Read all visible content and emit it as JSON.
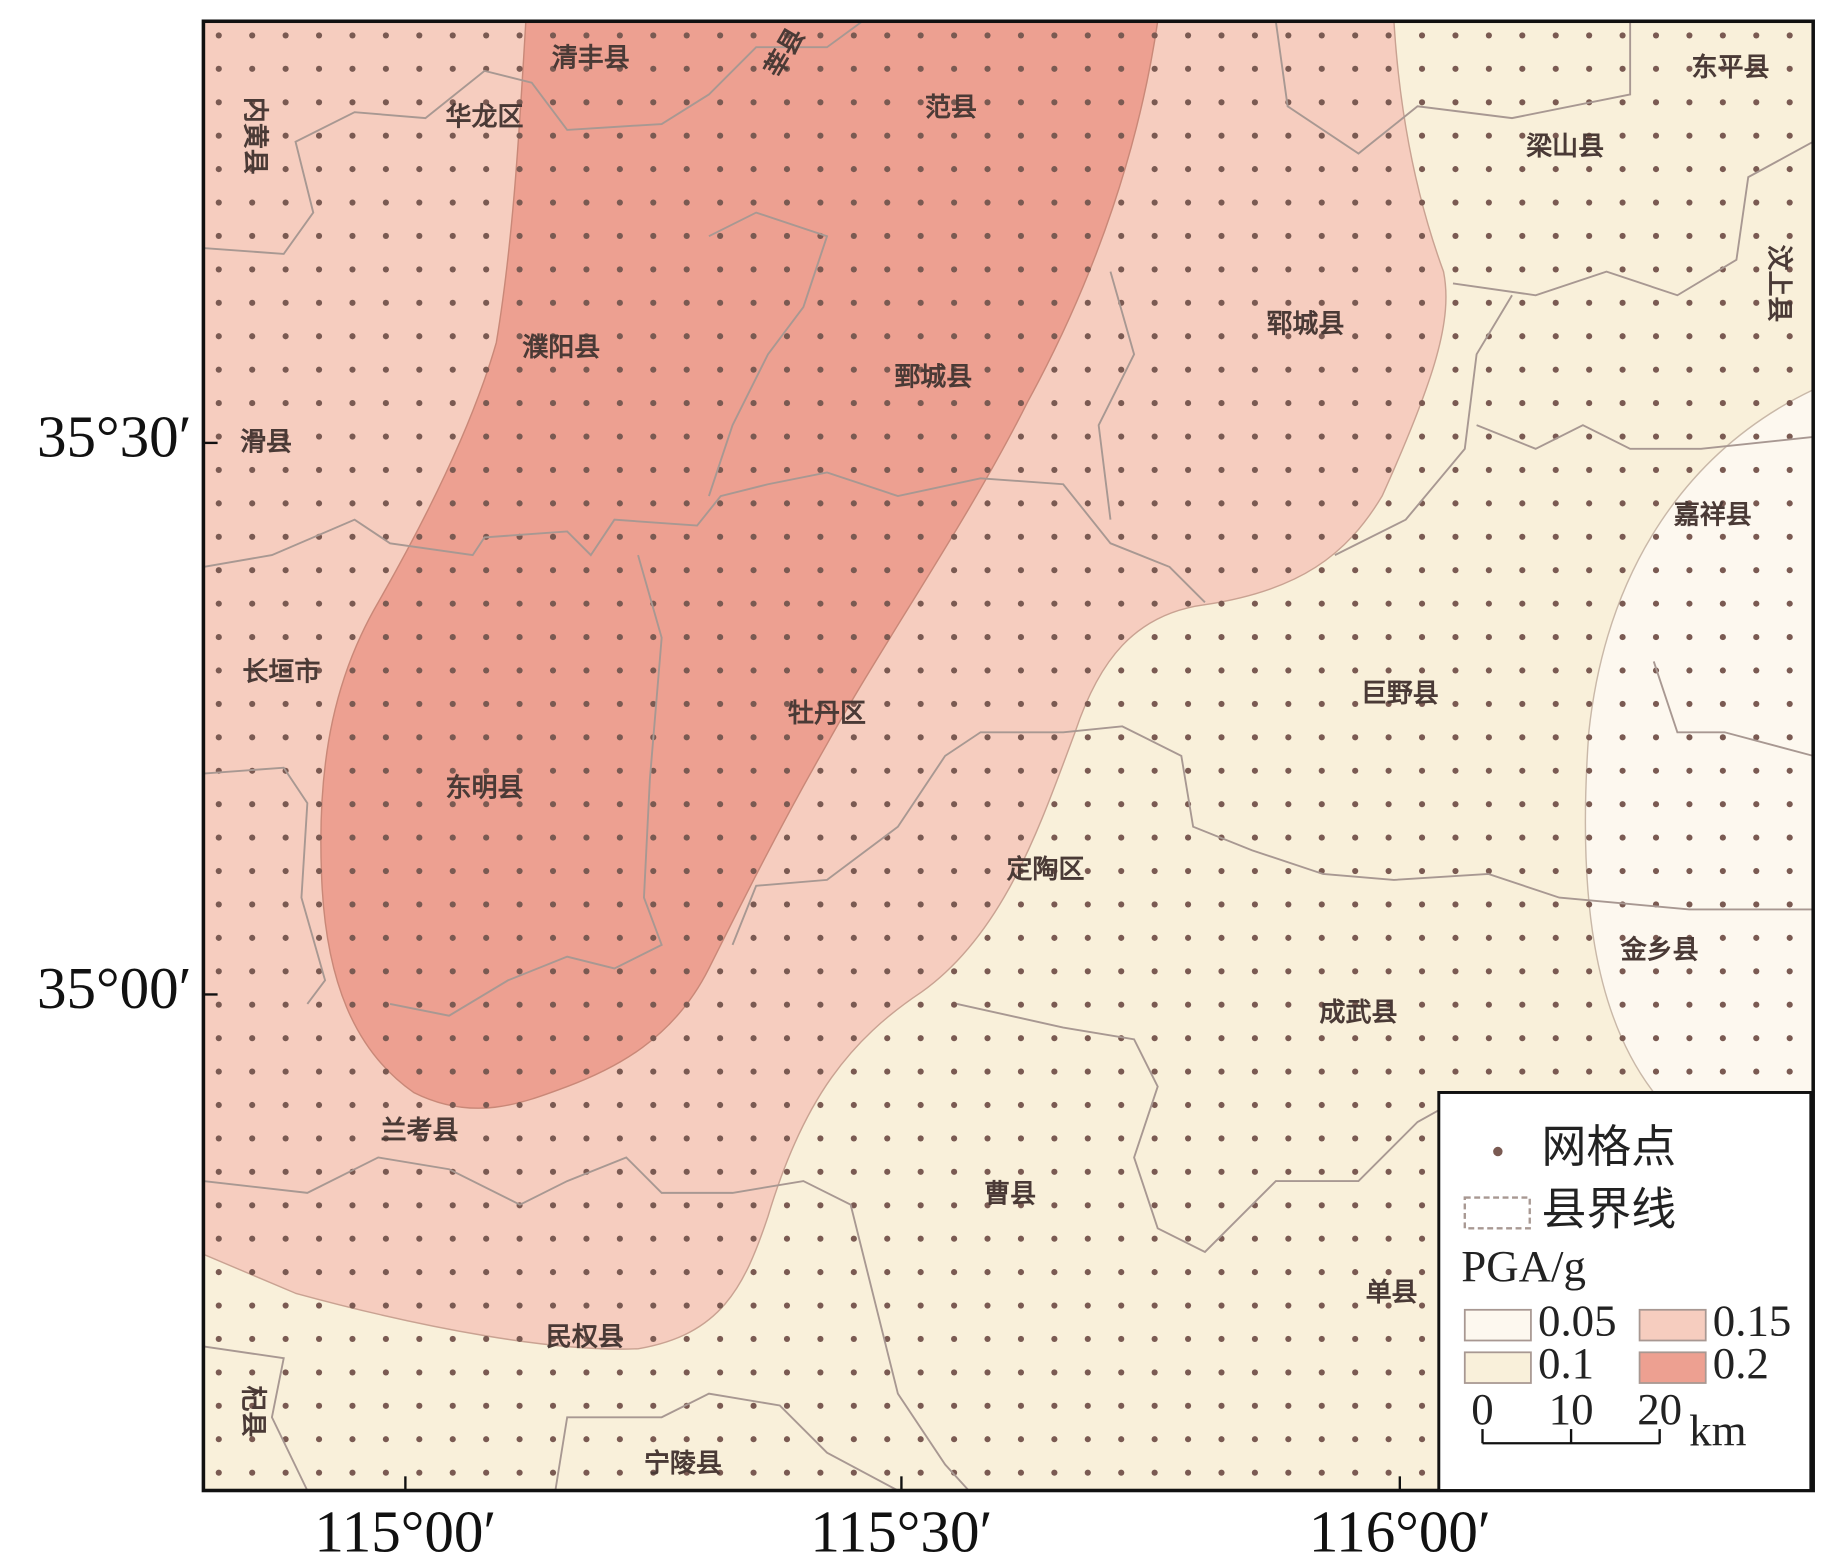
{
  "map": {
    "x_axis_labels": [
      "115°00′",
      "115°30′",
      "116°00′"
    ],
    "y_axis_labels": [
      "35°30′",
      "35°00′"
    ],
    "regions": [
      "清丰县",
      "莘县",
      "范县",
      "华龙区",
      "内黄县",
      "东平县",
      "梁山县",
      "汶上县",
      "濮阳县",
      "鄄城县",
      "郓城县",
      "滑县",
      "嘉祥县",
      "长垣市",
      "巨野县",
      "牡丹区",
      "东明县",
      "定陶区",
      "金乡县",
      "成武县",
      "兰考县",
      "曹县",
      "单县",
      "民权县",
      "杞县",
      "宁陵县"
    ],
    "legend": {
      "grid_point": "网格点",
      "county_boundary": "县界线",
      "title": "PGA/g",
      "classes": [
        {
          "value": 0.05,
          "color": "#fdf8ef"
        },
        {
          "value": 0.1,
          "color": "#f9f0da"
        },
        {
          "value": 0.15,
          "color": "#f6cdbf"
        },
        {
          "value": 0.2,
          "color": "#eda091"
        }
      ],
      "scale_bar": {
        "ticks": [
          0,
          10,
          20
        ],
        "unit": "km"
      }
    }
  }
}
